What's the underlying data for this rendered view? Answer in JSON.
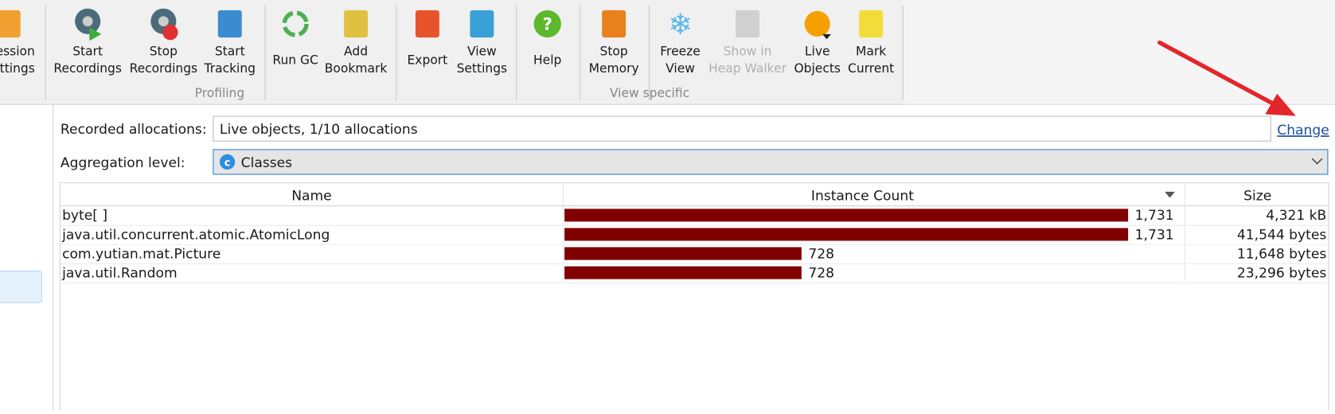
{
  "toolbar": {
    "buttons": [
      {
        "lines": [
          "ession",
          "ettings"
        ]
      },
      {
        "lines": [
          "Start",
          "Recordings"
        ]
      },
      {
        "lines": [
          "Stop",
          "Recordings"
        ]
      },
      {
        "lines": [
          "Start",
          "Tracking"
        ]
      },
      {
        "lines": [
          "Run GC"
        ]
      },
      {
        "lines": [
          "Add",
          "Bookmark"
        ]
      },
      {
        "lines": [
          "Export"
        ]
      },
      {
        "lines": [
          "View",
          "Settings"
        ]
      },
      {
        "lines": [
          "Help"
        ]
      },
      {
        "lines": [
          "Stop",
          "Memory"
        ]
      },
      {
        "lines": [
          "Freeze",
          "View"
        ]
      },
      {
        "lines": [
          "Show in",
          "Heap Walker"
        ],
        "disabled": true
      },
      {
        "lines": [
          "Live",
          "Objects"
        ]
      },
      {
        "lines": [
          "Mark",
          "Current"
        ]
      }
    ],
    "group_labels": [
      "Profiling",
      "View specific"
    ]
  },
  "form": {
    "recorded_label": "Recorded allocations:",
    "recorded_value": "Live objects, 1/10 allocations",
    "change_link": "Change",
    "aggregation_label": "Aggregation level:",
    "aggregation_icon": "c",
    "aggregation_value": "Classes"
  },
  "table": {
    "columns": [
      "Name",
      "Instance Count",
      "Size"
    ],
    "bar_color": "#800000",
    "rows": [
      {
        "name": "byte[ ]",
        "instance_count": 1731,
        "instance_count_label": "1,731",
        "size": "4,321 kB"
      },
      {
        "name": "java.util.concurrent.atomic.AtomicLong",
        "instance_count": 1731,
        "instance_count_label": "1,731",
        "size": "41,544 bytes"
      },
      {
        "name": "com.yutian.mat.Picture",
        "instance_count": 728,
        "instance_count_label": "728",
        "size": "11,648 bytes"
      },
      {
        "name": "java.util.Random",
        "instance_count": 728,
        "instance_count_label": "728",
        "size": "23,296 bytes"
      }
    ]
  }
}
